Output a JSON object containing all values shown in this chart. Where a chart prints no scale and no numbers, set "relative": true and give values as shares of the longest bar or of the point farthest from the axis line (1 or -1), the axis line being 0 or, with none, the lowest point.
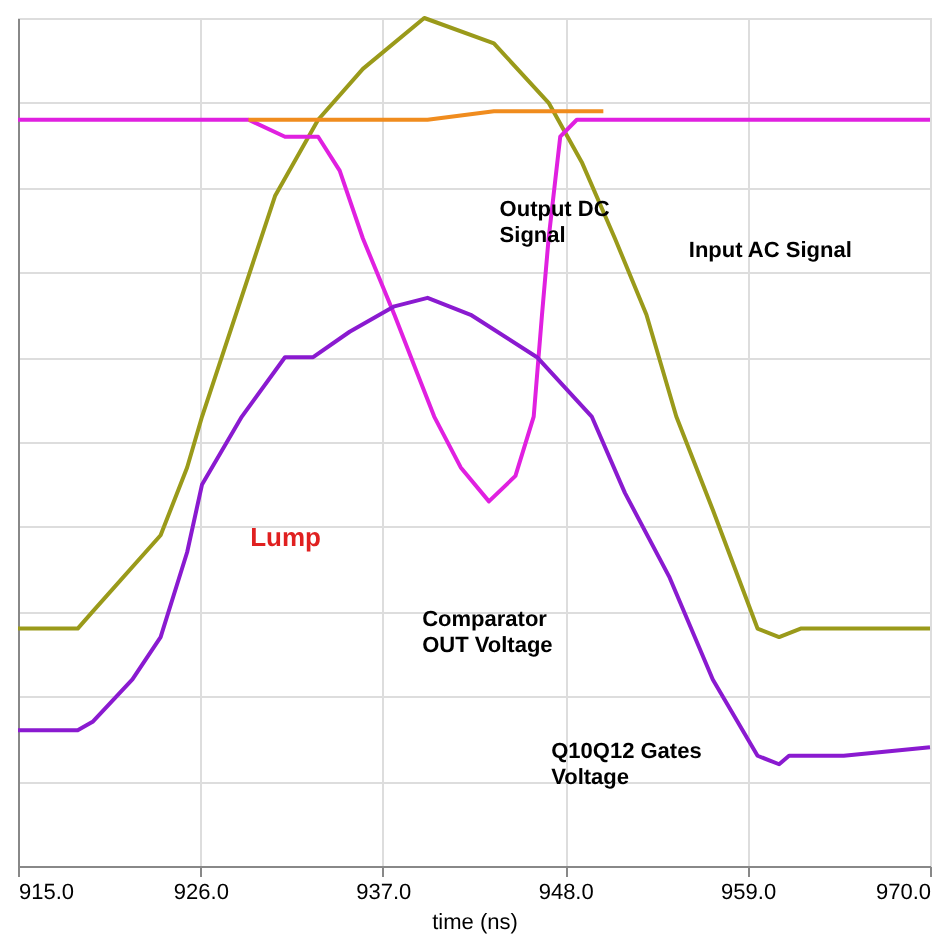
{
  "chart_data": {
    "type": "line",
    "relative": true,
    "xlabel": "time (ns)",
    "xlim": [
      915,
      970
    ],
    "xticks": [
      {
        "value": 915,
        "label": "915.0"
      },
      {
        "value": 926,
        "label": "926.0"
      },
      {
        "value": 937,
        "label": "937.0"
      },
      {
        "value": 948,
        "label": "948.0"
      },
      {
        "value": 959,
        "label": "959.0"
      },
      {
        "value": 970,
        "label": "970.0"
      }
    ],
    "grid": true,
    "marker": "none",
    "line_style": "solid",
    "series": [
      {
        "color": "#9a9a1a",
        "x": [
          915,
          918.6,
          919.5,
          923.6,
          925.2,
          926.1,
          930.5,
          933.1,
          935.8,
          939.5,
          943.7,
          947.0,
          949.0,
          951.0,
          952.9,
          954.7,
          956.9,
          959.6,
          960.9,
          962.2,
          970
        ],
        "values": [
          0.28,
          0.28,
          0.3,
          0.39,
          0.47,
          0.53,
          0.79,
          0.88,
          0.94,
          1.0,
          0.97,
          0.9,
          0.83,
          0.74,
          0.65,
          0.53,
          0.42,
          0.28,
          0.27,
          0.28,
          0.28
        ]
      },
      {
        "color": "#e020e0",
        "x": [
          915,
          928.9,
          931.1,
          933.1,
          934.4,
          935.8,
          937.7,
          939.1,
          940.1,
          941.7,
          943.4,
          945.0,
          946.1,
          946.6,
          947.0,
          947.7,
          948.7,
          950.3,
          964.8,
          970
        ],
        "values": [
          0.88,
          0.88,
          0.86,
          0.86,
          0.82,
          0.74,
          0.65,
          0.58,
          0.53,
          0.47,
          0.43,
          0.46,
          0.53,
          0.65,
          0.74,
          0.86,
          0.88,
          0.88,
          0.88,
          0.88
        ]
      },
      {
        "color": "#f08c1e",
        "x": [
          928.9,
          931.8,
          939.7,
          943.7,
          950.3
        ],
        "values": [
          0.88,
          0.88,
          0.88,
          0.89,
          0.89
        ]
      },
      {
        "color": "#8a1ad0",
        "x": [
          915,
          918.6,
          919.5,
          921.9,
          923.6,
          925.2,
          926.1,
          928.5,
          931.1,
          932.8,
          935.0,
          937.7,
          939.7,
          942.3,
          946.3,
          949.6,
          951.6,
          954.3,
          956.9,
          959.6,
          960.9,
          961.5,
          964.8,
          970
        ],
        "values": [
          0.16,
          0.16,
          0.17,
          0.22,
          0.27,
          0.37,
          0.45,
          0.53,
          0.6,
          0.6,
          0.63,
          0.66,
          0.67,
          0.65,
          0.6,
          0.53,
          0.44,
          0.34,
          0.22,
          0.13,
          0.12,
          0.13,
          0.13,
          0.14
        ]
      }
    ],
    "annotations": [
      "Output DC\nSignal",
      "Input AC Signal",
      "Comparator\nOUT Voltage",
      "Q10Q12 Gates\nVoltage",
      "Lump"
    ]
  }
}
